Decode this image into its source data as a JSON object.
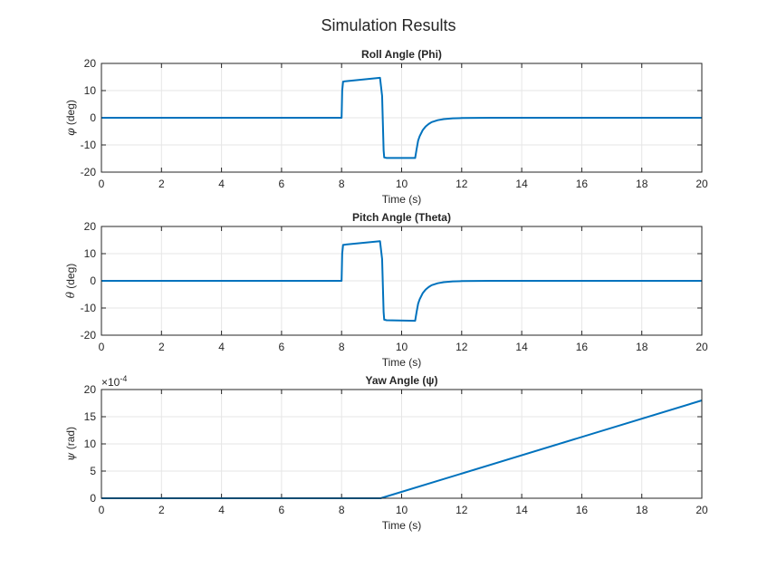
{
  "window": {
    "title": "Simulation Results"
  },
  "chart_data": [
    {
      "type": "line",
      "title": "Roll Angle (Phi)",
      "xlabel": "Time (s)",
      "ylabel_symbol": "φ",
      "ylabel_unit": "(deg)",
      "xlim": [
        0,
        20
      ],
      "ylim": [
        -20,
        20
      ],
      "xticks": [
        0,
        2,
        4,
        6,
        8,
        10,
        12,
        14,
        16,
        18,
        20
      ],
      "yticks": [
        -20,
        -10,
        0,
        10,
        20
      ],
      "exponent": "",
      "grid": true,
      "color": "#0072BD",
      "series": [
        {
          "x": [
            0,
            8.0,
            8.02,
            8.05,
            8.1,
            9.28,
            9.35,
            9.4,
            9.42,
            9.5,
            10.45,
            10.5,
            10.55,
            10.6,
            10.7,
            10.8,
            10.9,
            11.0,
            11.2,
            11.4,
            11.7,
            12.0,
            12.5,
            13.0,
            20
          ],
          "y": [
            0,
            0,
            10,
            13.3,
            13.4,
            14.7,
            8.0,
            -12.0,
            -14.6,
            -14.8,
            -14.8,
            -11.5,
            -8.4,
            -6.8,
            -4.6,
            -3.2,
            -2.3,
            -1.6,
            -0.9,
            -0.5,
            -0.2,
            -0.1,
            -0.03,
            0,
            0
          ]
        }
      ]
    },
    {
      "type": "line",
      "title": "Pitch Angle (Theta)",
      "xlabel": "Time (s)",
      "ylabel_symbol": "θ",
      "ylabel_unit": "(deg)",
      "xlim": [
        0,
        20
      ],
      "ylim": [
        -20,
        20
      ],
      "xticks": [
        0,
        2,
        4,
        6,
        8,
        10,
        12,
        14,
        16,
        18,
        20
      ],
      "yticks": [
        -20,
        -10,
        0,
        10,
        20
      ],
      "exponent": "",
      "grid": true,
      "color": "#0072BD",
      "series": [
        {
          "x": [
            0,
            8.0,
            8.02,
            8.05,
            8.1,
            9.28,
            9.35,
            9.4,
            9.42,
            9.5,
            10.45,
            10.5,
            10.55,
            10.6,
            10.7,
            10.8,
            10.9,
            11.0,
            11.2,
            11.4,
            11.7,
            12.0,
            12.5,
            13.0,
            20
          ],
          "y": [
            0,
            0,
            10,
            13.2,
            13.3,
            14.6,
            8.0,
            -11.5,
            -14.3,
            -14.5,
            -14.7,
            -11.4,
            -8.4,
            -6.8,
            -4.6,
            -3.2,
            -2.3,
            -1.6,
            -0.9,
            -0.5,
            -0.2,
            -0.1,
            -0.03,
            0,
            0
          ]
        }
      ]
    },
    {
      "type": "line",
      "title": "Yaw Angle (ψ)",
      "xlabel": "Time (s)",
      "ylabel_symbol": "ψ",
      "ylabel_unit": "(rad)",
      "xlim": [
        0,
        20
      ],
      "ylim": [
        0,
        20
      ],
      "xticks": [
        0,
        2,
        4,
        6,
        8,
        10,
        12,
        14,
        16,
        18,
        20
      ],
      "yticks": [
        0,
        5,
        10,
        15,
        20
      ],
      "exponent": "×10",
      "exponent_power": "-4",
      "grid": true,
      "color": "#0072BD",
      "series": [
        {
          "x": [
            0,
            9.3,
            20
          ],
          "y": [
            0,
            0,
            18
          ]
        }
      ]
    }
  ]
}
